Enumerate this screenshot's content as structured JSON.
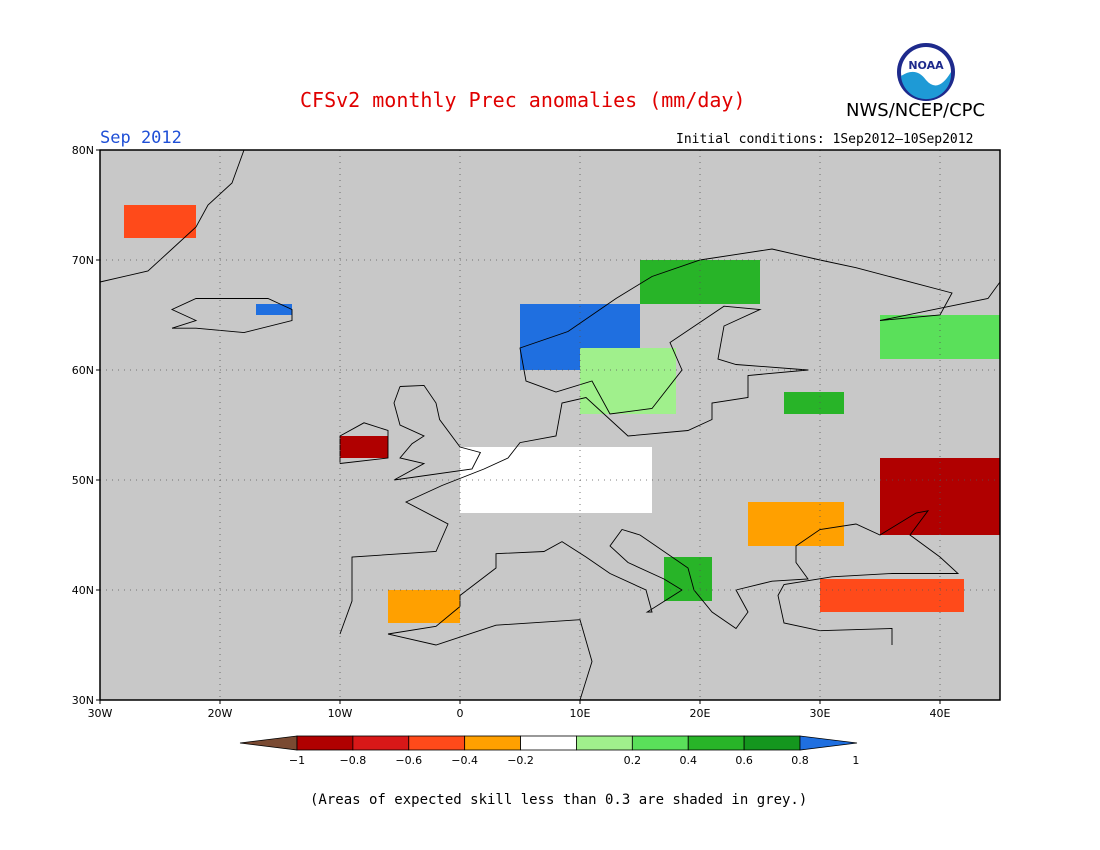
{
  "header": {
    "title": "CFSv2 monthly Prec anomalies (mm/day)",
    "agency": "NWS/NCEP/CPC",
    "logo_text": "NOAA",
    "month": "Sep 2012",
    "initial_conditions": "Initial conditions: 1Sep2012—10Sep2012"
  },
  "footer": {
    "note": "(Areas of expected skill less than 0.3 are shaded in grey.)"
  },
  "map": {
    "projection": "lat-lon",
    "lon_range": [
      -30,
      45
    ],
    "lat_range": [
      30,
      80
    ],
    "lon_ticks": [
      {
        "value": -30,
        "label": "30W"
      },
      {
        "value": -20,
        "label": "20W"
      },
      {
        "value": -10,
        "label": "10W"
      },
      {
        "value": 0,
        "label": "0"
      },
      {
        "value": 10,
        "label": "10E"
      },
      {
        "value": 20,
        "label": "20E"
      },
      {
        "value": 30,
        "label": "30E"
      },
      {
        "value": 40,
        "label": "40E"
      }
    ],
    "lat_ticks": [
      {
        "value": 30,
        "label": "30N"
      },
      {
        "value": 40,
        "label": "40N"
      },
      {
        "value": 50,
        "label": "50N"
      },
      {
        "value": 60,
        "label": "60N"
      },
      {
        "value": 70,
        "label": "70N"
      },
      {
        "value": 80,
        "label": "80N"
      }
    ],
    "gridlines": "dotted",
    "low_skill_color": "#c8c8c8"
  },
  "legend": {
    "labels": [
      "−1",
      "−0.8",
      "−0.6",
      "−0.4",
      "−0.2",
      "0.2",
      "0.4",
      "0.6",
      "0.8",
      "1"
    ],
    "bins": [
      {
        "range": "< -1",
        "color": "#7a4a32"
      },
      {
        "range": "-1 to -0.8",
        "color": "#b00000"
      },
      {
        "range": "-0.8 to -0.6",
        "color": "#d81818"
      },
      {
        "range": "-0.6 to -0.4",
        "color": "#ff4a1a"
      },
      {
        "range": "-0.4 to -0.2",
        "color": "#ffa000"
      },
      {
        "range": "-0.2 to 0.2",
        "color": "#ffffff"
      },
      {
        "range": "0.2 to 0.4",
        "color": "#a0f08c"
      },
      {
        "range": "0.4 to 0.6",
        "color": "#5ae05a"
      },
      {
        "range": "0.6 to 0.8",
        "color": "#28b428"
      },
      {
        "range": "0.8 to 1",
        "color": "#14961e"
      },
      {
        "range": "> 1",
        "color": "#1f6fe0"
      }
    ]
  },
  "anomaly_regions": [
    {
      "region": "Norway west coast",
      "lon": [
        5,
        15
      ],
      "lat": [
        60,
        66
      ],
      "bin": "> 1"
    },
    {
      "region": "Northern Scandinavia",
      "lon": [
        15,
        25
      ],
      "lat": [
        66,
        70
      ],
      "bin": "0.6 to 0.8"
    },
    {
      "region": "Southern Sweden",
      "lon": [
        10,
        18
      ],
      "lat": [
        56,
        62
      ],
      "bin": "0.2 to 0.4"
    },
    {
      "region": "Northwest Russia",
      "lon": [
        35,
        45
      ],
      "lat": [
        61,
        65
      ],
      "bin": "0.4 to 0.6"
    },
    {
      "region": "Baltic east",
      "lon": [
        27,
        32
      ],
      "lat": [
        56,
        58
      ],
      "bin": "0.6 to 0.8"
    },
    {
      "region": "Western Balkans",
      "lon": [
        17,
        21
      ],
      "lat": [
        39,
        43
      ],
      "bin": "0.6 to 0.8"
    },
    {
      "region": "Ireland",
      "lon": [
        -10,
        -6
      ],
      "lat": [
        52,
        54
      ],
      "bin": "-1 to -0.8"
    },
    {
      "region": "Southern Russia / Ukraine",
      "lon": [
        35,
        45
      ],
      "lat": [
        45,
        52
      ],
      "bin": "-1 to -0.8"
    },
    {
      "region": "Romania / Black Sea west",
      "lon": [
        24,
        32
      ],
      "lat": [
        44,
        48
      ],
      "bin": "-0.4 to -0.2"
    },
    {
      "region": "Turkey north",
      "lon": [
        30,
        42
      ],
      "lat": [
        38,
        41
      ],
      "bin": "-0.6 to -0.4"
    },
    {
      "region": "Iberia south",
      "lon": [
        -6,
        0
      ],
      "lat": [
        37,
        40
      ],
      "bin": "-0.4 to -0.2"
    },
    {
      "region": "Greenland east",
      "lon": [
        -28,
        -22
      ],
      "lat": [
        72,
        75
      ],
      "bin": "-0.6 to -0.4"
    },
    {
      "region": "Iceland east",
      "lon": [
        -17,
        -14
      ],
      "lat": [
        65,
        66
      ],
      "bin": "> 1"
    },
    {
      "region": "Central Europe",
      "lon": [
        0,
        16
      ],
      "lat": [
        47,
        53
      ],
      "bin": "-0.2 to 0.2"
    }
  ],
  "colors": {
    "title": "#e00000",
    "month": "#1f4fd6",
    "land_grey": "#c8c8c8",
    "coastline": "#000000"
  }
}
